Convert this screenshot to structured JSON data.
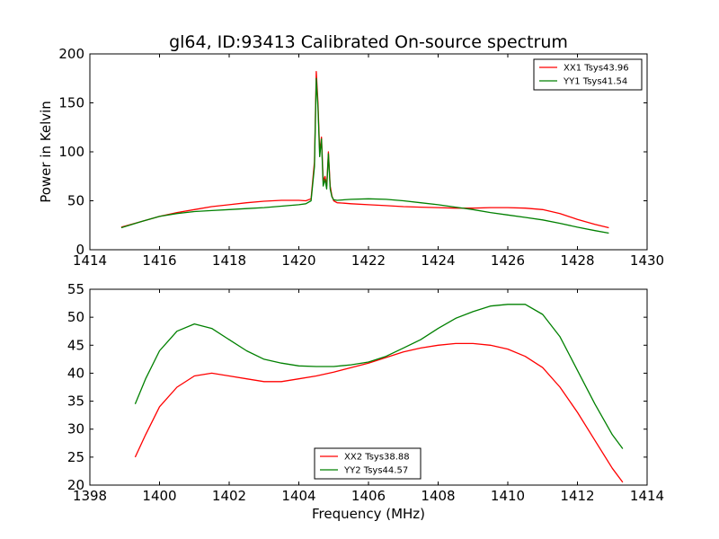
{
  "chart_data": [
    {
      "type": "line",
      "title": "gl64, ID:93413 Calibrated On-source spectrum",
      "xlabel": "",
      "ylabel": "Power in Kelvin",
      "xlim": [
        1414,
        1430
      ],
      "ylim": [
        0,
        200
      ],
      "xticks": [
        1414,
        1416,
        1418,
        1420,
        1422,
        1424,
        1426,
        1428,
        1430
      ],
      "yticks": [
        0,
        50,
        100,
        150,
        200
      ],
      "grid": false,
      "legend_position": "top-right",
      "series": [
        {
          "name": "XX1 Tsys43.96",
          "color": "#ff0000",
          "x": [
            1414.9,
            1415.5,
            1416.0,
            1416.5,
            1417.0,
            1417.5,
            1418.0,
            1418.5,
            1419.0,
            1419.5,
            1420.0,
            1420.2,
            1420.35,
            1420.45,
            1420.5,
            1420.55,
            1420.6,
            1420.65,
            1420.7,
            1420.75,
            1420.8,
            1420.85,
            1420.9,
            1420.95,
            1421.0,
            1421.1,
            1421.3,
            1421.5,
            1422.0,
            1422.5,
            1423.0,
            1423.5,
            1424.0,
            1424.5,
            1425.0,
            1425.5,
            1426.0,
            1426.5,
            1427.0,
            1427.5,
            1428.0,
            1428.5,
            1428.9
          ],
          "values": [
            23,
            29,
            34,
            38,
            41,
            44,
            46,
            48,
            49.5,
            50.5,
            50.5,
            50,
            52,
            90,
            182,
            150,
            100,
            115,
            70,
            75,
            65,
            100,
            65,
            55,
            50,
            48,
            47.5,
            47,
            46,
            45,
            44,
            43.5,
            43,
            42.5,
            42.5,
            43,
            43,
            42.5,
            41,
            37,
            31,
            26,
            22.5
          ]
        },
        {
          "name": "YY1 Tsys41.54",
          "color": "#008000",
          "x": [
            1414.9,
            1415.5,
            1416.0,
            1416.5,
            1417.0,
            1417.5,
            1418.0,
            1418.5,
            1419.0,
            1419.5,
            1420.0,
            1420.2,
            1420.35,
            1420.45,
            1420.5,
            1420.55,
            1420.6,
            1420.65,
            1420.7,
            1420.75,
            1420.8,
            1420.85,
            1420.9,
            1420.95,
            1421.0,
            1421.1,
            1421.3,
            1421.5,
            1422.0,
            1422.5,
            1423.0,
            1423.5,
            1424.0,
            1424.5,
            1425.0,
            1425.5,
            1426.0,
            1426.5,
            1427.0,
            1427.5,
            1428.0,
            1428.5,
            1428.9
          ],
          "values": [
            22.5,
            29,
            34,
            37,
            39,
            40,
            41,
            42,
            43,
            44.5,
            46,
            47,
            50,
            85,
            175,
            145,
            95,
            113,
            65,
            72,
            62,
            98,
            62,
            54,
            51,
            50.5,
            51,
            51.5,
            52,
            51.5,
            50,
            48,
            46,
            43.5,
            41,
            38,
            35.5,
            33,
            30.5,
            27,
            23,
            19.5,
            17
          ]
        }
      ]
    },
    {
      "type": "line",
      "title": "",
      "xlabel": "Frequency (MHz)",
      "ylabel": "",
      "xlim": [
        1398,
        1414
      ],
      "ylim": [
        20,
        55
      ],
      "xticks": [
        1398,
        1400,
        1402,
        1404,
        1406,
        1408,
        1410,
        1412,
        1414
      ],
      "yticks": [
        20,
        25,
        30,
        35,
        40,
        45,
        50,
        55
      ],
      "grid": false,
      "legend_position": "bottom-center",
      "series": [
        {
          "name": "XX2 Tsys38.88",
          "color": "#ff0000",
          "x": [
            1399.3,
            1399.6,
            1400.0,
            1400.5,
            1401.0,
            1401.5,
            1402.0,
            1402.5,
            1403.0,
            1403.5,
            1404.0,
            1404.5,
            1405.0,
            1405.5,
            1406.0,
            1406.5,
            1407.0,
            1407.5,
            1408.0,
            1408.5,
            1409.0,
            1409.5,
            1410.0,
            1410.5,
            1411.0,
            1411.5,
            1412.0,
            1412.5,
            1413.0,
            1413.3
          ],
          "values": [
            25,
            29,
            34,
            37.5,
            39.5,
            40,
            39.5,
            39,
            38.5,
            38.5,
            39,
            39.5,
            40.2,
            41,
            41.8,
            42.8,
            43.8,
            44.5,
            45,
            45.3,
            45.3,
            45,
            44.3,
            43,
            41,
            37.5,
            33,
            28,
            23,
            20.5
          ]
        },
        {
          "name": "YY2 Tsys44.57",
          "color": "#008000",
          "x": [
            1399.3,
            1399.6,
            1400.0,
            1400.5,
            1401.0,
            1401.5,
            1402.0,
            1402.5,
            1403.0,
            1403.5,
            1404.0,
            1404.5,
            1405.0,
            1405.5,
            1406.0,
            1406.5,
            1407.0,
            1407.5,
            1408.0,
            1408.5,
            1409.0,
            1409.5,
            1410.0,
            1410.5,
            1411.0,
            1411.5,
            1412.0,
            1412.5,
            1413.0,
            1413.3
          ],
          "values": [
            34.5,
            39,
            44,
            47.5,
            48.8,
            48,
            46,
            44,
            42.5,
            41.8,
            41.3,
            41.2,
            41.2,
            41.5,
            42,
            43,
            44.5,
            46,
            48,
            49.8,
            51,
            52,
            52.3,
            52.3,
            50.5,
            46.5,
            40.5,
            34.5,
            29,
            26.5
          ]
        }
      ]
    }
  ]
}
